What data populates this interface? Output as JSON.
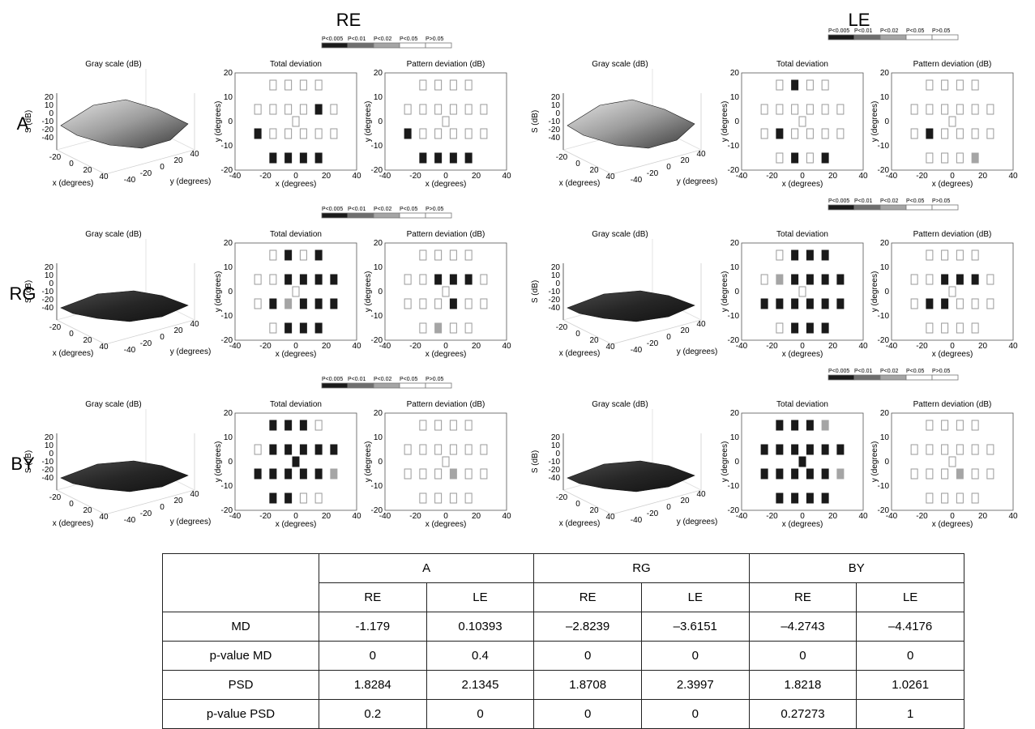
{
  "figure": {
    "eyes": [
      {
        "id": "re",
        "label": "RE"
      },
      {
        "id": "le",
        "label": "LE"
      }
    ],
    "legend": {
      "labels": [
        "P<0.005",
        "P<0.01",
        "P<0.02",
        "P<0.05",
        "P>0.05"
      ],
      "colors": [
        "#1a1a1a",
        "#6e6e6e",
        "#a5a5a5",
        "#ffffff",
        "#ffffff"
      ]
    }
  },
  "chart_data": {
    "type": "heatmap",
    "panel_titles": {
      "surface": "Gray scale (dB)",
      "total": "Total deviation",
      "pattern": "Pattern deviation (dB)"
    },
    "axes": {
      "deviation_x_label": "x (degrees)",
      "deviation_y_label": "y (degrees)",
      "deviation_xlim": [
        -40,
        40
      ],
      "deviation_ylim": [
        -20,
        20
      ],
      "deviation_xticks": [
        -40,
        -20,
        0,
        20,
        40
      ],
      "deviation_yticks": [
        -20,
        -10,
        0,
        10,
        20
      ],
      "surface_z_label": "S (dB)",
      "surface_x_label": "x (degrees)",
      "surface_y_label": "y (degrees)",
      "surface_zticks": [
        20,
        10,
        0,
        -10,
        -20,
        -40
      ],
      "surface_xticks": [
        -20,
        0,
        20,
        40
      ],
      "surface_yticks": [
        -40,
        -20,
        0,
        20,
        40
      ]
    },
    "significance_scale": [
      "P<0.005",
      "P<0.01",
      "P<0.02",
      "P<0.05",
      "P>0.05"
    ],
    "grid_points_xy_degrees": [
      [
        -15,
        15
      ],
      [
        -5,
        15
      ],
      [
        5,
        15
      ],
      [
        15,
        15
      ],
      [
        -25,
        5
      ],
      [
        -15,
        5
      ],
      [
        -5,
        5
      ],
      [
        5,
        5
      ],
      [
        15,
        5
      ],
      [
        25,
        5
      ],
      [
        0,
        0
      ],
      [
        -25,
        -5
      ],
      [
        -15,
        -5
      ],
      [
        -5,
        -5
      ],
      [
        5,
        -5
      ],
      [
        15,
        -5
      ],
      [
        25,
        -5
      ],
      [
        -15,
        -15
      ],
      [
        -5,
        -15
      ],
      [
        5,
        -15
      ],
      [
        15,
        -15
      ]
    ],
    "rows": [
      {
        "label": "A",
        "panels": [
          {
            "eye": "RE",
            "surface_shade": "light",
            "total": [
              4,
              4,
              4,
              4,
              4,
              4,
              4,
              4,
              0,
              4,
              4,
              0,
              4,
              4,
              4,
              4,
              4,
              0,
              0,
              0,
              0
            ],
            "pattern": [
              4,
              4,
              4,
              4,
              4,
              4,
              4,
              4,
              4,
              4,
              4,
              0,
              4,
              4,
              4,
              4,
              4,
              0,
              0,
              0,
              0
            ]
          },
          {
            "eye": "LE",
            "surface_shade": "light",
            "total": [
              4,
              0,
              4,
              4,
              4,
              4,
              4,
              4,
              4,
              4,
              4,
              4,
              0,
              4,
              4,
              4,
              4,
              4,
              0,
              4,
              0
            ],
            "pattern": [
              4,
              4,
              4,
              4,
              4,
              4,
              4,
              4,
              4,
              4,
              4,
              4,
              0,
              4,
              4,
              4,
              4,
              4,
              4,
              4,
              2
            ]
          }
        ]
      },
      {
        "label": "RG",
        "panels": [
          {
            "eye": "RE",
            "surface_shade": "dark",
            "total": [
              4,
              0,
              4,
              0,
              4,
              4,
              0,
              0,
              0,
              0,
              4,
              4,
              0,
              2,
              0,
              0,
              0,
              4,
              0,
              0,
              0
            ],
            "pattern": [
              4,
              4,
              4,
              4,
              4,
              4,
              0,
              0,
              0,
              4,
              4,
              4,
              4,
              4,
              0,
              4,
              4,
              4,
              2,
              4,
              4
            ]
          },
          {
            "eye": "LE",
            "surface_shade": "dark",
            "total": [
              4,
              0,
              0,
              0,
              4,
              2,
              0,
              0,
              0,
              0,
              4,
              0,
              0,
              0,
              0,
              0,
              0,
              4,
              0,
              0,
              0
            ],
            "pattern": [
              4,
              4,
              4,
              4,
              4,
              4,
              0,
              0,
              0,
              4,
              4,
              4,
              0,
              0,
              4,
              4,
              4,
              4,
              3,
              4,
              4
            ]
          }
        ]
      },
      {
        "label": "BY",
        "panels": [
          {
            "eye": "RE",
            "surface_shade": "dark",
            "total": [
              0,
              0,
              0,
              3,
              4,
              0,
              0,
              0,
              0,
              0,
              0,
              0,
              0,
              0,
              0,
              0,
              2,
              0,
              0,
              4,
              4
            ],
            "pattern": [
              3,
              4,
              4,
              4,
              4,
              4,
              4,
              4,
              4,
              4,
              4,
              4,
              4,
              4,
              2,
              4,
              4,
              4,
              4,
              4,
              4
            ]
          },
          {
            "eye": "LE",
            "surface_shade": "dark",
            "total": [
              0,
              0,
              0,
              2,
              0,
              0,
              0,
              0,
              0,
              0,
              0,
              0,
              0,
              0,
              0,
              0,
              2,
              0,
              0,
              0,
              0
            ],
            "pattern": [
              4,
              4,
              4,
              4,
              4,
              4,
              4,
              4,
              4,
              4,
              4,
              4,
              4,
              4,
              2,
              4,
              4,
              4,
              4,
              4,
              4
            ]
          }
        ]
      }
    ],
    "table": {
      "group_headers": [
        "A",
        "RG",
        "BY"
      ],
      "eye_headers": [
        "RE",
        "LE",
        "RE",
        "LE",
        "RE",
        "LE"
      ],
      "rows": [
        {
          "label": "MD",
          "values": [
            "-1.179",
            "0.10393",
            "–2.8239",
            "–3.6151",
            "–4.2743",
            "–4.4176"
          ]
        },
        {
          "label": "p-value MD",
          "values": [
            "0",
            "0.4",
            "0",
            "0",
            "0",
            "0"
          ]
        },
        {
          "label": "PSD",
          "values": [
            "1.8284",
            "2.1345",
            "1.8708",
            "2.3997",
            "1.8218",
            "1.0261"
          ]
        },
        {
          "label": "p-value PSD",
          "values": [
            "0.2",
            "0",
            "0",
            "0",
            "0.27273",
            "1"
          ]
        }
      ]
    }
  }
}
